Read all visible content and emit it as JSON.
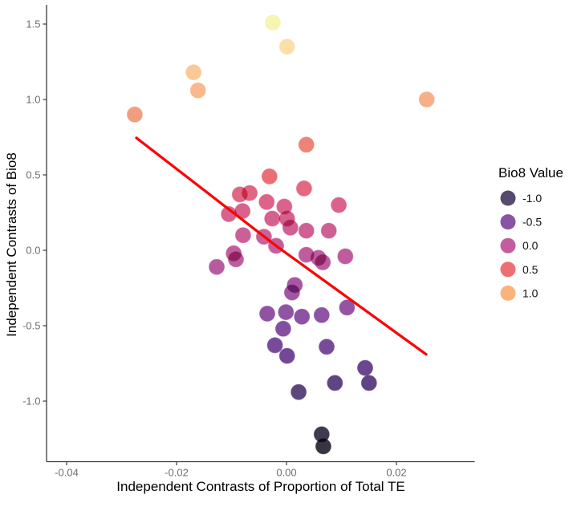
{
  "figure": {
    "background": "#ffffff"
  },
  "legend": {
    "title": "Bio8 Value",
    "items": [
      {
        "label": "-1.0",
        "value": -1.0,
        "color": "#564b6e"
      },
      {
        "label": "-0.5",
        "value": -0.5,
        "color": "#8b53a4"
      },
      {
        "label": "0.0",
        "value": 0.0,
        "color": "#c35d9d"
      },
      {
        "label": "0.5",
        "value": 0.5,
        "color": "#ed6f74"
      },
      {
        "label": "1.0",
        "value": 1.0,
        "color": "#fab37b"
      }
    ]
  },
  "style": {
    "axis_color": "#3a3a3a",
    "tick_label_color": "#6e6e6e",
    "title_color": "#000000",
    "background": "#ffffff"
  },
  "chart_data": {
    "type": "scatter",
    "title": "",
    "xlabel": "Independent Contrasts of Proportion of Total TE",
    "ylabel": "Independent Contrasts of Bio8",
    "xlim": [
      -0.0437,
      0.0343
    ],
    "ylim": [
      -1.4,
      1.63
    ],
    "grid": false,
    "legend_position": "right",
    "x_ticks": [
      {
        "value": -0.04,
        "label": "-0.04"
      },
      {
        "value": -0.02,
        "label": "-0.02"
      },
      {
        "value": 0.0,
        "label": "0.00"
      },
      {
        "value": 0.02,
        "label": "0.02"
      }
    ],
    "y_ticks": [
      {
        "value": 1.5,
        "label": "1.5"
      },
      {
        "value": 1.0,
        "label": "1.0"
      },
      {
        "value": 0.5,
        "label": "0.5"
      },
      {
        "value": 0.0,
        "label": "0.0"
      },
      {
        "value": -0.5,
        "label": "-0.5"
      },
      {
        "value": -1.0,
        "label": "-1.0"
      }
    ],
    "point_style": {
      "radius": 9.5,
      "opacity": 1
    },
    "color_scale": {
      "title": "Bio8 Value",
      "stops": [
        [
          -1.35,
          "#343039"
        ],
        [
          -1.2,
          "#413b52"
        ],
        [
          -1.0,
          "#574a73"
        ],
        [
          -0.85,
          "#644389"
        ],
        [
          -0.6,
          "#7b4c9c"
        ],
        [
          -0.4,
          "#9154a3"
        ],
        [
          -0.2,
          "#ac58a2"
        ],
        [
          0.0,
          "#c45d9c"
        ],
        [
          0.2,
          "#d46190"
        ],
        [
          0.35,
          "#df6487"
        ],
        [
          0.5,
          "#ec6f75"
        ],
        [
          0.7,
          "#ee8478"
        ],
        [
          0.9,
          "#f19d80"
        ],
        [
          1.05,
          "#fab88c"
        ],
        [
          1.2,
          "#fbcc98"
        ],
        [
          1.35,
          "#fbdfa8"
        ],
        [
          1.5,
          "#f6f5b1"
        ]
      ]
    },
    "trend_line": {
      "color": "#f90606",
      "width": 3.3,
      "points": [
        [
          -0.0273,
          0.745
        ],
        [
          -0.0018,
          0.027
        ],
        [
          0.0254,
          -0.69
        ]
      ]
    },
    "points": [
      [
        -0.0025,
        1.51
      ],
      [
        0.0001,
        1.35
      ],
      [
        -0.0169,
        1.18
      ],
      [
        -0.0161,
        1.06
      ],
      [
        -0.0276,
        0.9
      ],
      [
        0.0255,
        1.0
      ],
      [
        0.0036,
        0.7
      ],
      [
        -0.0031,
        0.49
      ],
      [
        -0.0085,
        0.37
      ],
      [
        -0.0067,
        0.38
      ],
      [
        0.0032,
        0.41
      ],
      [
        -0.0036,
        0.32
      ],
      [
        -0.0004,
        0.29
      ],
      [
        -0.0105,
        0.24
      ],
      [
        -0.008,
        0.26
      ],
      [
        -0.0026,
        0.21
      ],
      [
        0.0001,
        0.21
      ],
      [
        0.0095,
        0.3
      ],
      [
        0.0007,
        0.15
      ],
      [
        0.0036,
        0.13
      ],
      [
        0.0077,
        0.13
      ],
      [
        -0.0079,
        0.1
      ],
      [
        -0.0041,
        0.09
      ],
      [
        -0.0019,
        0.03
      ],
      [
        -0.0096,
        -0.02
      ],
      [
        -0.0092,
        -0.06
      ],
      [
        -0.0127,
        -0.11
      ],
      [
        0.0036,
        -0.03
      ],
      [
        0.0058,
        -0.05
      ],
      [
        0.0066,
        -0.08
      ],
      [
        0.0107,
        -0.04
      ],
      [
        0.0015,
        -0.23
      ],
      [
        0.001,
        -0.28
      ],
      [
        0.011,
        -0.38
      ],
      [
        -0.0035,
        -0.42
      ],
      [
        -0.0001,
        -0.41
      ],
      [
        0.0028,
        -0.44
      ],
      [
        0.0064,
        -0.43
      ],
      [
        -0.0006,
        -0.52
      ],
      [
        -0.0021,
        -0.63
      ],
      [
        0.0073,
        -0.64
      ],
      [
        0.0001,
        -0.7
      ],
      [
        0.0143,
        -0.78
      ],
      [
        0.0088,
        -0.88
      ],
      [
        0.015,
        -0.88
      ],
      [
        0.0022,
        -0.94
      ],
      [
        0.0064,
        -1.22
      ],
      [
        0.0067,
        -1.3
      ]
    ]
  }
}
